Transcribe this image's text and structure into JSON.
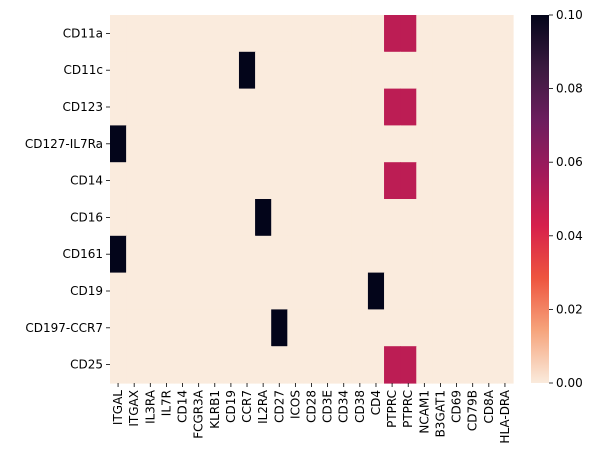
{
  "chart_data": {
    "type": "heatmap",
    "title": "",
    "xlabel": "",
    "ylabel": "",
    "rows": [
      "CD11a",
      "CD11c",
      "CD123",
      "CD127-IL7Ra",
      "CD14",
      "CD16",
      "CD161",
      "CD19",
      "CD197-CCR7",
      "CD25"
    ],
    "columns": [
      "ITGAL",
      "ITGAX",
      "IL3RA",
      "IL7R",
      "CD14",
      "FCGR3A",
      "KLRB1",
      "CD19",
      "CCR7",
      "IL2RA",
      "CD27",
      "ICOS",
      "CD28",
      "CD3E",
      "CD34",
      "CD38",
      "CD4",
      "PTPRC",
      "PTPRC",
      "NCAM1",
      "B3GAT1",
      "CD69",
      "CD79B",
      "CD8A",
      "HLA-DRA"
    ],
    "values": [
      [
        0,
        0,
        0,
        0,
        0,
        0,
        0,
        0,
        0,
        0,
        0,
        0,
        0,
        0,
        0,
        0,
        0,
        0.05,
        0.05,
        0,
        0,
        0,
        0,
        0,
        0
      ],
      [
        0,
        0,
        0,
        0,
        0,
        0,
        0,
        0,
        0.1,
        0,
        0,
        0,
        0,
        0,
        0,
        0,
        0,
        0,
        0,
        0,
        0,
        0,
        0,
        0,
        0
      ],
      [
        0,
        0,
        0,
        0,
        0,
        0,
        0,
        0,
        0,
        0,
        0,
        0,
        0,
        0,
        0,
        0,
        0,
        0.05,
        0.05,
        0,
        0,
        0,
        0,
        0,
        0
      ],
      [
        0.1,
        0,
        0,
        0,
        0,
        0,
        0,
        0,
        0,
        0,
        0,
        0,
        0,
        0,
        0,
        0,
        0,
        0,
        0,
        0,
        0,
        0,
        0,
        0,
        0
      ],
      [
        0,
        0,
        0,
        0,
        0,
        0,
        0,
        0,
        0,
        0,
        0,
        0,
        0,
        0,
        0,
        0,
        0,
        0.05,
        0.05,
        0,
        0,
        0,
        0,
        0,
        0
      ],
      [
        0,
        0,
        0,
        0,
        0,
        0,
        0,
        0,
        0,
        0.1,
        0,
        0,
        0,
        0,
        0,
        0,
        0,
        0,
        0,
        0,
        0,
        0,
        0,
        0,
        0
      ],
      [
        0.1,
        0,
        0,
        0,
        0,
        0,
        0,
        0,
        0,
        0,
        0,
        0,
        0,
        0,
        0,
        0,
        0,
        0,
        0,
        0,
        0,
        0,
        0,
        0,
        0
      ],
      [
        0,
        0,
        0,
        0,
        0,
        0,
        0,
        0,
        0,
        0,
        0,
        0,
        0,
        0,
        0,
        0,
        0.1,
        0,
        0,
        0,
        0,
        0,
        0,
        0,
        0
      ],
      [
        0,
        0,
        0,
        0,
        0,
        0,
        0,
        0,
        0,
        0,
        0.1,
        0,
        0,
        0,
        0,
        0,
        0,
        0,
        0,
        0,
        0,
        0,
        0,
        0,
        0
      ],
      [
        0,
        0,
        0,
        0,
        0,
        0,
        0,
        0,
        0,
        0,
        0,
        0,
        0,
        0,
        0,
        0,
        0,
        0.05,
        0.05,
        0,
        0,
        0,
        0,
        0,
        0
      ]
    ],
    "colorbar": {
      "min": 0,
      "max": 0.1,
      "ticks": [
        "0.00",
        "0.02",
        "0.04",
        "0.06",
        "0.08",
        "0.10"
      ],
      "colormap": "rocket_r",
      "stops": [
        "#faebdd",
        "#f6a47c",
        "#ee543f",
        "#d6204c",
        "#a11a5b",
        "#6c1d5e",
        "#3a1a3f",
        "#03051a"
      ]
    }
  }
}
